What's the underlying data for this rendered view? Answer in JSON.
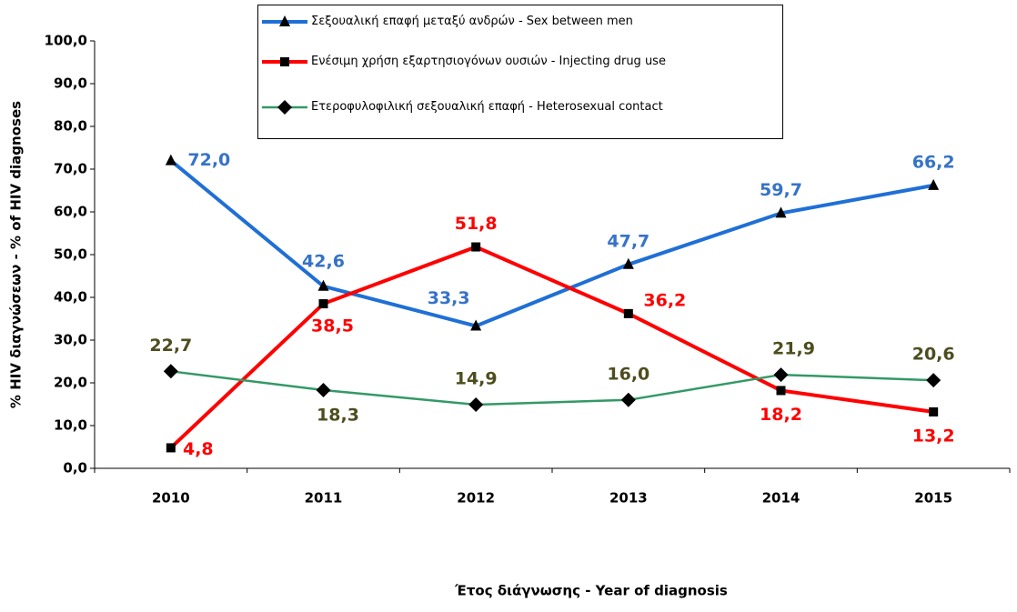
{
  "chart_data": {
    "type": "line",
    "x_label": "Έτος διάγνωσης - Year of diagnosis",
    "y_label": "% HIV διαγνώσεων -  % of HIV diagnoses",
    "categories": [
      "2010",
      "2011",
      "2012",
      "2013",
      "2014",
      "2015"
    ],
    "ylim": [
      0,
      100
    ],
    "yticks": [
      {
        "value": 0,
        "label": "0,0"
      },
      {
        "value": 10,
        "label": "10,0"
      },
      {
        "value": 20,
        "label": "20,0"
      },
      {
        "value": 30,
        "label": "30,0"
      },
      {
        "value": 40,
        "label": "40,0"
      },
      {
        "value": 50,
        "label": "50,0"
      },
      {
        "value": 60,
        "label": "60,0"
      },
      {
        "value": 70,
        "label": "70,0"
      },
      {
        "value": 80,
        "label": "80,0"
      },
      {
        "value": 90,
        "label": "90,0"
      },
      {
        "value": 100,
        "label": "100,0"
      }
    ],
    "series": [
      {
        "name": "Σεξουαλική επαφή μεταξύ ανδρών - Sex between men",
        "color": "#1f6fd6",
        "label_color": "#3673c8",
        "marker": "triangle",
        "values": [
          72.0,
          42.6,
          33.3,
          47.7,
          59.7,
          66.2
        ],
        "value_labels": [
          "72,0",
          "42,6",
          "33,3",
          "47,7",
          "59,7",
          "66,2"
        ]
      },
      {
        "name": "Ενέσιμη χρήση εξαρτησιογόνων ουσιών - Injecting drug use",
        "color": "#ff0000",
        "label_color": "#ff0000",
        "marker": "square",
        "values": [
          4.8,
          38.5,
          51.8,
          36.2,
          18.2,
          13.2
        ],
        "value_labels": [
          "4,8",
          "38,5",
          "51,8",
          "36,2",
          "18,2",
          "13,2"
        ]
      },
      {
        "name": "Ετεροφυλοφιλική σεξουαλική επαφή - Heterosexual contact",
        "color": "#339966",
        "label_color": "#4d4d1f",
        "marker": "diamond",
        "values": [
          22.7,
          18.3,
          14.9,
          16.0,
          21.9,
          20.6
        ],
        "value_labels": [
          "22,7",
          "18,3",
          "14,9",
          "16,0",
          "21,9",
          "20,6"
        ]
      }
    ]
  }
}
